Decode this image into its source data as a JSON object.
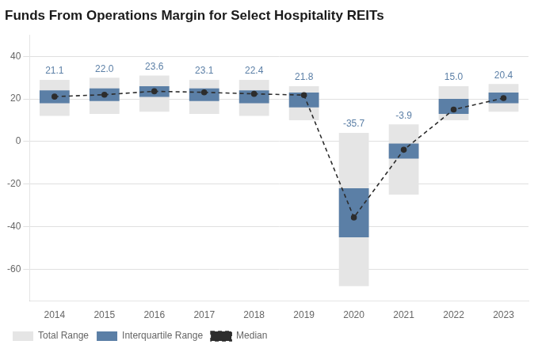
{
  "chart_data": {
    "type": "bar",
    "title": "Funds From Operations Margin for Select Hospitality REITs",
    "categories": [
      "2014",
      "2015",
      "2016",
      "2017",
      "2018",
      "2019",
      "2020",
      "2021",
      "2022",
      "2023"
    ],
    "series": [
      {
        "name": "Total Range",
        "type": "bar",
        "color": "#e5e5e5",
        "low": [
          12,
          13,
          14,
          13,
          12,
          10,
          -68,
          -25,
          10,
          14
        ],
        "high": [
          29,
          30,
          31,
          29,
          29,
          26,
          4,
          8,
          26,
          27
        ]
      },
      {
        "name": "Interquartile Range",
        "type": "bar",
        "color": "#5b7fa6",
        "low": [
          18,
          19,
          21,
          19,
          18,
          16,
          -45,
          -8,
          13,
          18
        ],
        "high": [
          24,
          25,
          26,
          25,
          24,
          23,
          -22,
          -1,
          20,
          23
        ]
      },
      {
        "name": "Median",
        "type": "line",
        "color": "#2d2d2d",
        "line_style": "dashed",
        "marker": "circle",
        "values": [
          21.1,
          22.0,
          23.6,
          23.1,
          22.4,
          21.8,
          -35.7,
          -3.9,
          15.0,
          20.4
        ],
        "value_labels": [
          "21.1",
          "22.0",
          "23.6",
          "23.1",
          "22.4",
          "21.8",
          "-35.7",
          "-3.9",
          "15.0",
          "20.4"
        ],
        "data_labels": true
      }
    ],
    "ylim": [
      -75,
      50
    ],
    "yticks": [
      -60,
      -40,
      -20,
      0,
      20,
      40
    ],
    "grid": true,
    "legend": "bottom"
  }
}
